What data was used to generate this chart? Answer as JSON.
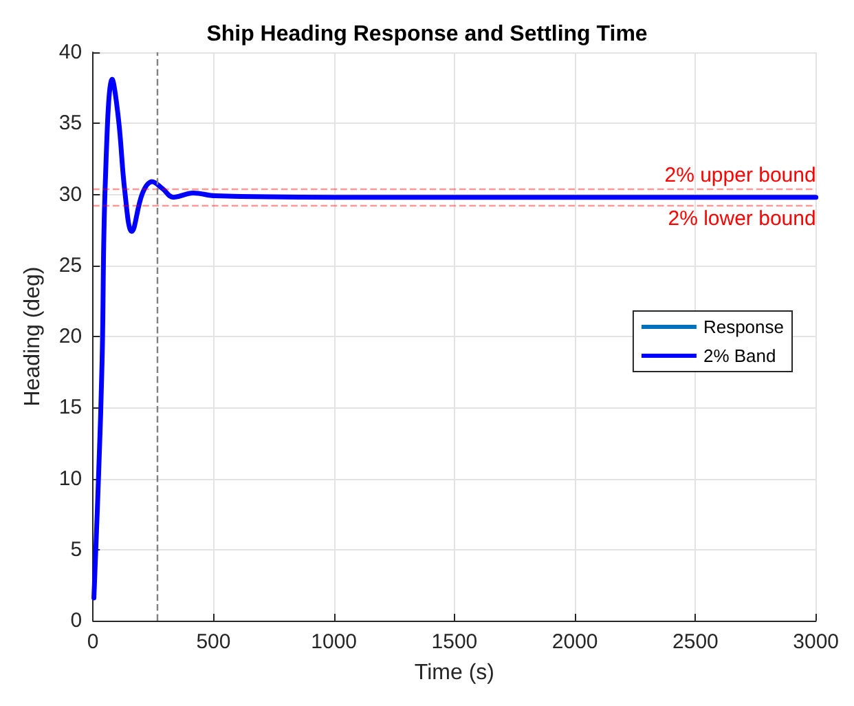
{
  "chart_data": {
    "type": "line",
    "title": "Ship Heading Response and Settling Time",
    "xlabel": "Time (s)",
    "ylabel": "Heading (deg)",
    "series": [
      {
        "name": "Response",
        "color": "#0072bd",
        "values": [
          null,
          null,
          null,
          null,
          null,
          null,
          null,
          null,
          null,
          null,
          null,
          null,
          null,
          null,
          null,
          null,
          null
        ]
      },
      {
        "name": "2% Band",
        "color": "#0000ff",
        "values": [
          1.6,
          10.5,
          18.3,
          30.7,
          38.1,
          35.3,
          30.1,
          27.4,
          30.1,
          30.9,
          30.4,
          29.8,
          30.1,
          29.9,
          29.8,
          29.8,
          29.8
        ]
      }
    ],
    "x": [
      4,
      24,
      38,
      51,
      80,
      106,
      133,
      161,
      206,
      245,
      289,
      334,
      416,
      508,
      1000,
      2000,
      3000
    ],
    "xlim": [
      0,
      3000
    ],
    "xticks": [
      0,
      500,
      1000,
      1500,
      2000,
      2500,
      3000
    ],
    "ylim": [
      0,
      40
    ],
    "yticks": [
      0,
      5,
      10,
      15,
      20,
      25,
      30,
      35,
      40
    ],
    "ref_lines": [
      {
        "axis": "y",
        "value": 30.4,
        "label": "2% upper bound",
        "color": "#ff0000",
        "line_style": "dashed"
      },
      {
        "axis": "y",
        "value": 29.2,
        "label": "2% lower bound",
        "color": "#ff0000",
        "line_style": "dashed"
      },
      {
        "axis": "x",
        "value": 265,
        "label": null,
        "color": "#808080",
        "line_style": "dashed"
      }
    ],
    "grid": true,
    "legend": "right",
    "marker": "none",
    "line_style": "solid"
  }
}
